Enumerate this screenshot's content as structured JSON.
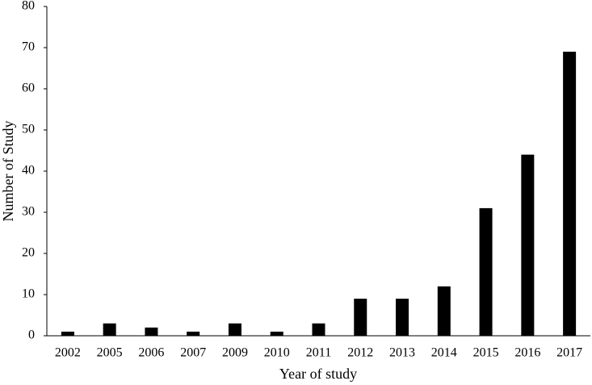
{
  "chart_data": {
    "type": "bar",
    "x_label": "Year of study",
    "y_label": "Number of Study",
    "categories": [
      "2002",
      "2005",
      "2006",
      "2007",
      "2009",
      "2010",
      "2011",
      "2012",
      "2013",
      "2014",
      "2015",
      "2016",
      "2017"
    ],
    "values": [
      1,
      3,
      2,
      1,
      3,
      1,
      3,
      9,
      9,
      12,
      31,
      44,
      69
    ],
    "color": "#000000",
    "ylim": [
      0,
      80
    ],
    "yticks": [
      0,
      10,
      20,
      30,
      40,
      50,
      60,
      70,
      80
    ],
    "grid": false
  }
}
